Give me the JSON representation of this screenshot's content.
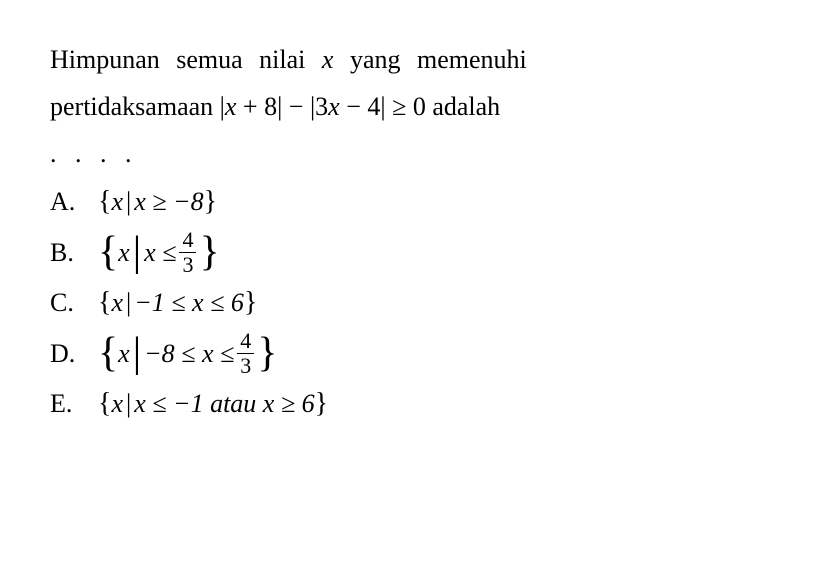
{
  "question": {
    "line1_part1": "Himpunan semua nilai ",
    "line1_var": "x",
    "line1_part2": " yang memenuhi",
    "line2_part1": "pertidaksamaan |",
    "line2_var1": "x",
    "line2_part2": " + 8| − |3",
    "line2_var2": "x",
    "line2_part3": " − 4| ≥ 0 adalah",
    "dots": ". . . ."
  },
  "options": {
    "A": {
      "label": "A.",
      "lbrace": "{",
      "var": "x",
      "pipe": "|",
      "expr": " x ≥ −8",
      "rbrace": "}"
    },
    "B": {
      "label": "B.",
      "lbrace": "{",
      "var1": "x",
      "pipe": "|",
      "expr_pre": " x ≤ ",
      "frac_num": "4",
      "frac_den": "3",
      "rbrace": "}"
    },
    "C": {
      "label": "C.",
      "lbrace": "{",
      "var": "x",
      "pipe": "|",
      "expr": " −1 ≤ x ≤ 6",
      "rbrace": "}"
    },
    "D": {
      "label": "D.",
      "lbrace": "{",
      "var1": "x",
      "pipe": "|",
      "expr_pre": " −8 ≤ x ≤ ",
      "frac_num": "4",
      "frac_den": "3",
      "rbrace": "}"
    },
    "E": {
      "label": "E.",
      "lbrace": "{",
      "var": "x",
      "pipe": "|",
      "expr": " x ≤ −1 atau x ≥ 6",
      "rbrace": "}"
    }
  },
  "style": {
    "background_color": "#ffffff",
    "text_color": "#000000",
    "font_family": "Times New Roman",
    "body_fontsize": 26,
    "frac_fontsize": 22,
    "brace_large_fontsize": 42,
    "brace_small_fontsize": 28
  }
}
